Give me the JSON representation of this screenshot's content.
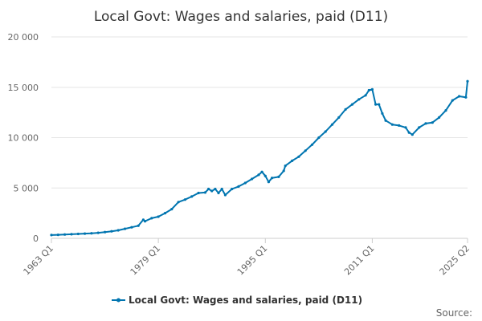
{
  "chart_data": {
    "type": "line",
    "title": "Local Govt: Wages and salaries, paid (D11)",
    "xlabel": "",
    "ylabel": "",
    "ylim": [
      0,
      20000
    ],
    "y_ticks": [
      "0",
      "5 000",
      "10 000",
      "15 000",
      "20 000"
    ],
    "y_tick_values": [
      0,
      5000,
      10000,
      15000,
      20000
    ],
    "x_ticks": [
      "1963 Q1",
      "1979 Q1",
      "1995 Q1",
      "2011 Q1",
      "2025 Q2"
    ],
    "x_tick_values": [
      1963.0,
      1979.0,
      1995.0,
      2011.0,
      2025.25
    ],
    "x_range": [
      1963.0,
      2025.25
    ],
    "grid": "horizontal",
    "legend_position": "bottom",
    "color": "#0075b0",
    "series": [
      {
        "name": "Local Govt: Wages and salaries, paid (D11)",
        "points": [
          [
            1963.0,
            330
          ],
          [
            1964.0,
            350
          ],
          [
            1965.0,
            380
          ],
          [
            1966.0,
            410
          ],
          [
            1967.0,
            440
          ],
          [
            1968.0,
            470
          ],
          [
            1969.0,
            500
          ],
          [
            1970.0,
            550
          ],
          [
            1971.0,
            620
          ],
          [
            1972.0,
            700
          ],
          [
            1973.0,
            800
          ],
          [
            1974.0,
            950
          ],
          [
            1975.0,
            1100
          ],
          [
            1976.0,
            1250
          ],
          [
            1976.75,
            1850
          ],
          [
            1977.0,
            1700
          ],
          [
            1978.0,
            2000
          ],
          [
            1979.0,
            2150
          ],
          [
            1980.0,
            2500
          ],
          [
            1981.0,
            2900
          ],
          [
            1982.0,
            3600
          ],
          [
            1983.0,
            3850
          ],
          [
            1984.0,
            4150
          ],
          [
            1985.0,
            4500
          ],
          [
            1986.0,
            4550
          ],
          [
            1986.5,
            4900
          ],
          [
            1987.0,
            4700
          ],
          [
            1987.5,
            4900
          ],
          [
            1988.0,
            4500
          ],
          [
            1988.5,
            4900
          ],
          [
            1989.0,
            4300
          ],
          [
            1990.0,
            4900
          ],
          [
            1991.0,
            5150
          ],
          [
            1992.0,
            5500
          ],
          [
            1993.0,
            5900
          ],
          [
            1994.0,
            6300
          ],
          [
            1994.5,
            6600
          ],
          [
            1995.0,
            6200
          ],
          [
            1995.5,
            5600
          ],
          [
            1996.0,
            6000
          ],
          [
            1997.0,
            6100
          ],
          [
            1997.75,
            6700
          ],
          [
            1998.0,
            7200
          ],
          [
            1999.0,
            7700
          ],
          [
            2000.0,
            8100
          ],
          [
            2001.0,
            8700
          ],
          [
            2002.0,
            9300
          ],
          [
            2003.0,
            10000
          ],
          [
            2004.0,
            10600
          ],
          [
            2005.0,
            11300
          ],
          [
            2006.0,
            12000
          ],
          [
            2007.0,
            12800
          ],
          [
            2008.0,
            13300
          ],
          [
            2009.0,
            13800
          ],
          [
            2010.0,
            14200
          ],
          [
            2010.5,
            14700
          ],
          [
            2011.0,
            14800
          ],
          [
            2011.5,
            13300
          ],
          [
            2012.0,
            13300
          ],
          [
            2012.5,
            12400
          ],
          [
            2013.0,
            11700
          ],
          [
            2014.0,
            11300
          ],
          [
            2015.0,
            11200
          ],
          [
            2016.0,
            11000
          ],
          [
            2016.5,
            10500
          ],
          [
            2017.0,
            10300
          ],
          [
            2018.0,
            11000
          ],
          [
            2019.0,
            11400
          ],
          [
            2020.0,
            11500
          ],
          [
            2021.0,
            12000
          ],
          [
            2022.0,
            12700
          ],
          [
            2023.0,
            13700
          ],
          [
            2024.0,
            14100
          ],
          [
            2025.0,
            14000
          ],
          [
            2025.25,
            15600
          ]
        ]
      }
    ],
    "source_label": "Source:"
  }
}
